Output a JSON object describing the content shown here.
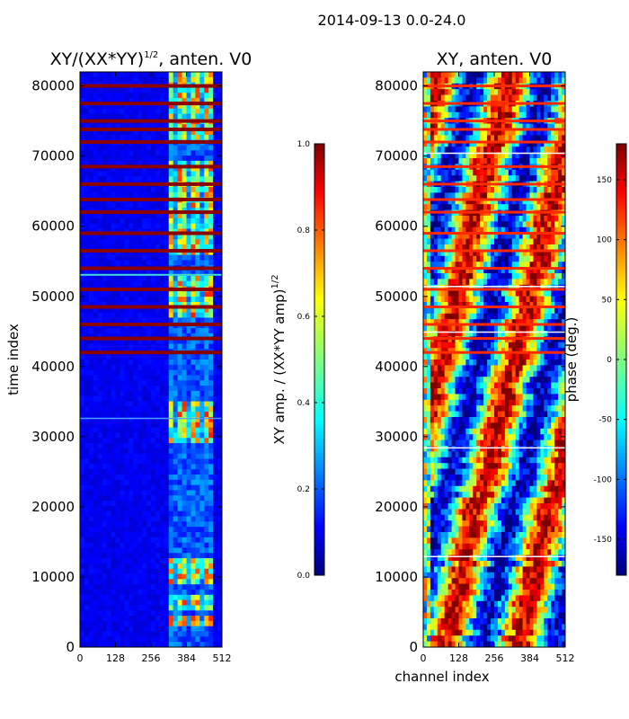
{
  "figure_title": "2014-09-13 0.0-24.0",
  "chart_data": [
    {
      "type": "heatmap",
      "title_main": "XY/(XX*YY)",
      "title_sup": "1/2",
      "title_suffix": ", anten. V0",
      "xlabel": "",
      "ylabel": "time index",
      "xlim": [
        0,
        512
      ],
      "ylim": [
        0,
        82000
      ],
      "xticks": [
        "0",
        "128",
        "256",
        "384",
        "512"
      ],
      "yticks": [
        "0",
        "10000",
        "20000",
        "30000",
        "40000",
        "50000",
        "60000",
        "70000",
        "80000"
      ],
      "colorbar": {
        "label_main": "XY amp. / (XX*YY amp)",
        "label_sup": "1/2",
        "range": [
          0.0,
          1.0
        ],
        "ticks": [
          "0.0",
          "0.2",
          "0.4",
          "0.6",
          "0.8",
          "1.0"
        ],
        "colormap": "jet"
      },
      "saturated_rows_time_index": [
        80000,
        77500,
        75000,
        73800,
        72000,
        68500,
        66000,
        63800,
        62000,
        59000,
        56500,
        54000,
        51000,
        48500,
        46000,
        44000,
        42000
      ],
      "bright_channel_range": [
        320,
        480
      ],
      "bright_time_bands": [
        [
          3000,
          4500
        ],
        [
          5500,
          7500
        ],
        [
          9000,
          12500
        ],
        [
          29000,
          35000
        ],
        [
          47000,
          53000
        ],
        [
          56000,
          69000
        ],
        [
          72000,
          82000
        ]
      ]
    },
    {
      "type": "heatmap",
      "title": "XY, anten. V0",
      "xlabel": "channel index",
      "ylabel": "",
      "xlim": [
        0,
        512
      ],
      "ylim": [
        0,
        82000
      ],
      "xticks": [
        "0",
        "128",
        "256",
        "384",
        "512"
      ],
      "yticks": [
        "0",
        "10000",
        "20000",
        "30000",
        "40000",
        "50000",
        "60000",
        "70000",
        "80000"
      ],
      "colorbar": {
        "label": "phase (deg.)",
        "range": [
          -180,
          180
        ],
        "ticks": [
          "-150",
          "-100",
          "-50",
          "0",
          "50",
          "100",
          "150"
        ],
        "colormap": "jet"
      }
    }
  ]
}
